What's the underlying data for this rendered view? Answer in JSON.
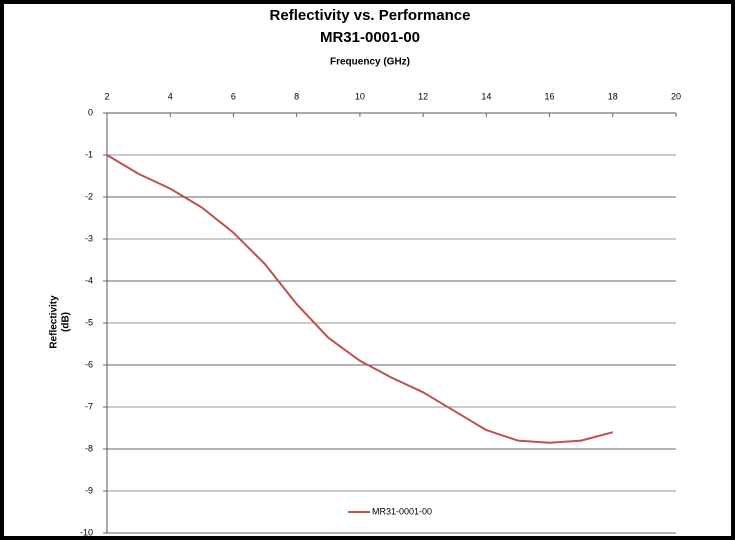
{
  "chart_data": {
    "type": "line",
    "title": "Reflectivity vs. Performance",
    "subtitle": "MR31-0001-00",
    "xlabel": "Frequency (GHz)",
    "ylabel": [
      "Reflectivity",
      "(dB)"
    ],
    "x": [
      2,
      3,
      4,
      5,
      6,
      7,
      8,
      9,
      10,
      11,
      12,
      13,
      14,
      15,
      16,
      17,
      18
    ],
    "series": [
      {
        "name": "MR31-0001-00",
        "color": "#c0504d",
        "values": [
          -1,
          -1.45,
          -1.8,
          -2.25,
          -2.85,
          -3.6,
          -4.55,
          -5.35,
          -5.9,
          -6.3,
          -6.65,
          -7.1,
          -7.55,
          -7.8,
          -7.85,
          -7.8,
          -7.6
        ]
      }
    ],
    "xlim": [
      2,
      20
    ],
    "xticks": [
      2,
      4,
      6,
      8,
      10,
      12,
      14,
      16,
      18,
      20
    ],
    "ylim": [
      -10,
      0
    ],
    "yticks": [
      0,
      -1,
      -2,
      -3,
      -4,
      -5,
      -6,
      -7,
      -8,
      -9,
      -10
    ],
    "grid": true,
    "legend": "bottom"
  }
}
